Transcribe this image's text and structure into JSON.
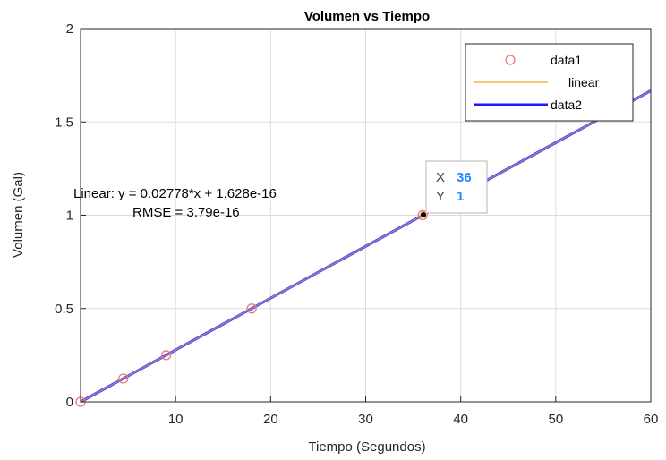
{
  "chart_data": {
    "type": "scatter",
    "title": "Volumen vs Tiempo",
    "xlabel": "Tiempo (Segundos)",
    "ylabel": "Volumen (Gal)",
    "xlim": [
      0,
      60
    ],
    "ylim": [
      0,
      2
    ],
    "x_ticks": [
      "10",
      "20",
      "30",
      "40",
      "50",
      "60"
    ],
    "y_ticks": [
      "0",
      "0.5",
      "1",
      "1.5",
      "2"
    ],
    "grid": true,
    "legend_position": "top-right",
    "series": [
      {
        "name": "data1",
        "kind": "markers",
        "marker": "circle",
        "color": "#f07070",
        "points": [
          [
            0,
            0
          ],
          [
            4.5,
            0.125
          ],
          [
            9,
            0.25
          ],
          [
            18,
            0.5
          ],
          [
            36,
            1
          ]
        ]
      },
      {
        "name": "linear",
        "kind": "line",
        "color": "#f5c878",
        "slope": 0.02778,
        "intercept": 1.628e-16
      },
      {
        "name": "data2",
        "kind": "line",
        "color": "#1a1aff",
        "slope": 0.02778,
        "intercept": 0
      }
    ],
    "annotation": {
      "line1": "Linear:  y = 0.02778*x + 1.628e-16",
      "line2": "RMSE = 3.79e-16"
    },
    "datatip": {
      "x_label": "X",
      "x_value": "36",
      "y_label": "Y",
      "y_value": "1",
      "x": 36,
      "y": 1,
      "value_color": "#1a8cff"
    }
  }
}
